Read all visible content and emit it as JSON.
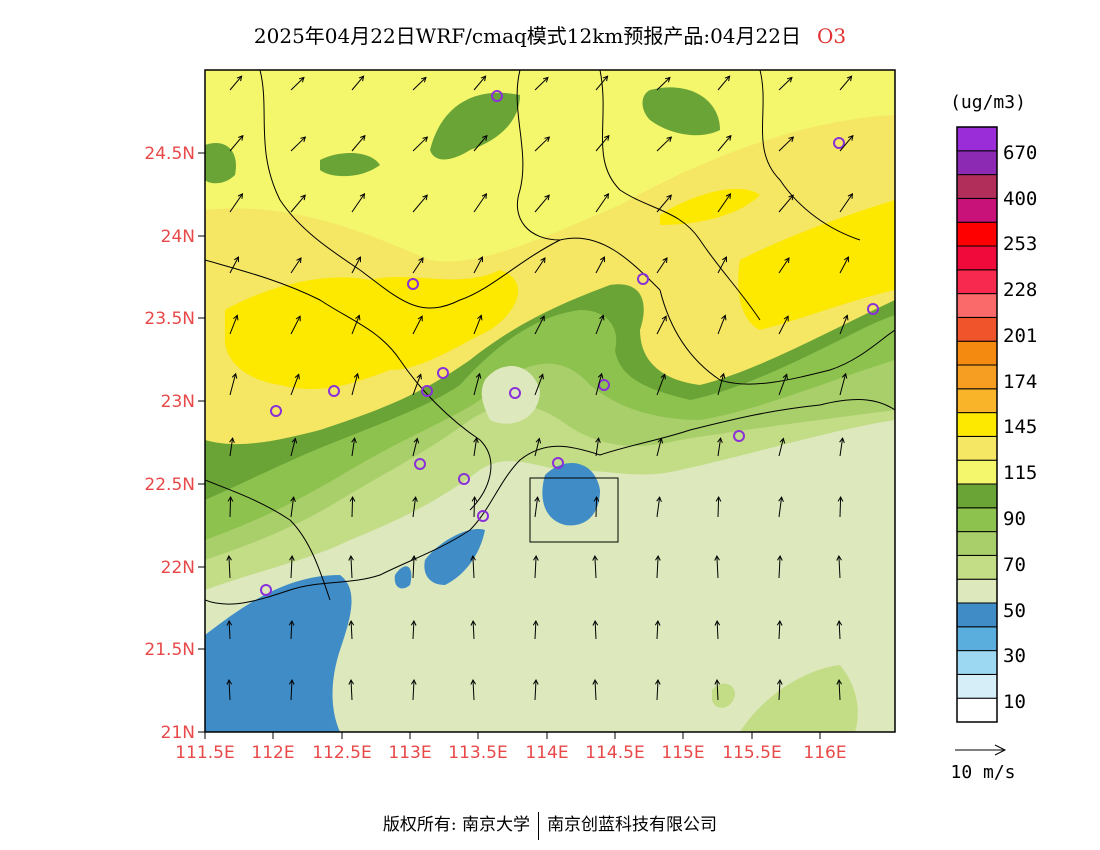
{
  "title": {
    "main": "2025年04月22日WRF/cmaq模式12km预报产品:04月22日",
    "variable": "O3"
  },
  "map": {
    "lat_labels": [
      "24.5N",
      "24N",
      "23.5N",
      "23N",
      "22.5N",
      "22N",
      "21.5N",
      "21N"
    ],
    "lon_labels": [
      "111.5E",
      "112E",
      "112.5E",
      "113E",
      "113.5E",
      "114E",
      "114.5E",
      "115E",
      "115.5E",
      "116E"
    ],
    "colors": {
      "c10": "#d6eef8",
      "c30": "#9dd8f2",
      "c40": "#5aaede",
      "c50": "#3f8cc6",
      "c60": "#dde8bd",
      "c70": "#c3dc86",
      "c80": "#a8cf6a",
      "c90": "#8dc24e",
      "c100": "#6aa437",
      "c115": "#f4f66c",
      "c130": "#f5e664",
      "c145": "#fde800"
    }
  },
  "colorbar": {
    "unit": "(ug/m3)",
    "labels": [
      "670",
      "400",
      "253",
      "228",
      "201",
      "174",
      "145",
      "115",
      "90",
      "70",
      "50",
      "30",
      "10"
    ],
    "colors": [
      "#ffffff",
      "#d6eef8",
      "#9dd8f2",
      "#5aaede",
      "#3f8cc6",
      "#dde8bd",
      "#c3dc86",
      "#a8cf6a",
      "#8dc24e",
      "#6aa437",
      "#f4f66c",
      "#f5e664",
      "#fde800",
      "#fab429",
      "#f69e22",
      "#f48a10",
      "#f0542a",
      "#fb6a6a",
      "#f8294e",
      "#f00a3c",
      "#ff0000",
      "#c8127a",
      "#b22e5a",
      "#8c2ab4",
      "#9b2dd8"
    ]
  },
  "wind": {
    "reference": "10 m/s"
  },
  "footer": {
    "left": "版权所有: 南京大学",
    "right": "南京创蓝科技有限公司"
  }
}
